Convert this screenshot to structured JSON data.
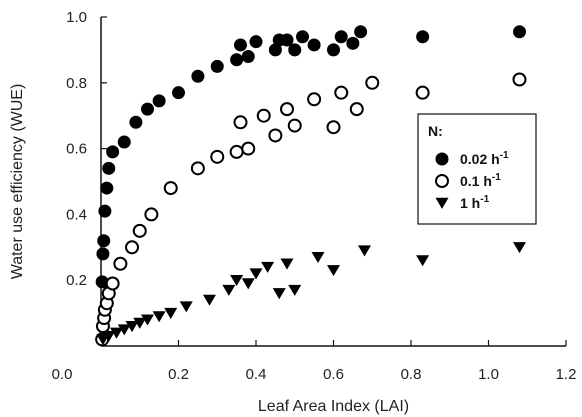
{
  "chart_data": {
    "type": "scatter",
    "xlabel": "Leaf Area Index (LAI)",
    "ylabel": "Water use efficiency (WUE)",
    "xlim": [
      0,
      1.2
    ],
    "ylim": [
      0,
      1.0
    ],
    "x_ticks": [
      "0.0",
      "0.2",
      "0.4",
      "0.6",
      "0.8",
      "1.0",
      "1.2"
    ],
    "y_ticks": [
      "0.0",
      "0.2",
      "0.4",
      "0.6",
      "0.8",
      "1.0"
    ],
    "grid": false,
    "legend": {
      "title": "N:",
      "placement": "right",
      "entries": [
        {
          "label": "0.02 h",
          "sup": "-1",
          "marker": "filled-circle"
        },
        {
          "label": "0.1 h",
          "sup": "-1",
          "marker": "open-circle"
        },
        {
          "label": "1 h",
          "sup": "-1",
          "marker": "filled-triangle-down"
        }
      ]
    },
    "series": [
      {
        "name": "0.02 h-1",
        "marker": "filled-circle",
        "color": "#000000",
        "x": [
          0.003,
          0.005,
          0.007,
          0.01,
          0.015,
          0.02,
          0.03,
          0.06,
          0.09,
          0.12,
          0.15,
          0.2,
          0.25,
          0.3,
          0.35,
          0.36,
          0.38,
          0.4,
          0.45,
          0.46,
          0.48,
          0.5,
          0.52,
          0.55,
          0.6,
          0.62,
          0.65,
          0.67,
          0.83,
          1.08
        ],
        "y": [
          0.195,
          0.28,
          0.32,
          0.41,
          0.48,
          0.54,
          0.59,
          0.62,
          0.68,
          0.72,
          0.745,
          0.77,
          0.82,
          0.85,
          0.87,
          0.915,
          0.88,
          0.925,
          0.9,
          0.93,
          0.93,
          0.9,
          0.94,
          0.915,
          0.9,
          0.94,
          0.92,
          0.955,
          0.94,
          0.955
        ]
      },
      {
        "name": "0.1 h-1",
        "marker": "open-circle",
        "color": "#000000",
        "x": [
          0.003,
          0.005,
          0.008,
          0.01,
          0.015,
          0.02,
          0.03,
          0.05,
          0.08,
          0.1,
          0.13,
          0.18,
          0.25,
          0.3,
          0.35,
          0.36,
          0.38,
          0.42,
          0.45,
          0.48,
          0.5,
          0.55,
          0.6,
          0.62,
          0.66,
          0.7,
          0.83,
          1.08
        ],
        "y": [
          0.02,
          0.06,
          0.085,
          0.11,
          0.13,
          0.16,
          0.19,
          0.25,
          0.3,
          0.35,
          0.4,
          0.48,
          0.54,
          0.575,
          0.59,
          0.68,
          0.6,
          0.7,
          0.64,
          0.72,
          0.67,
          0.75,
          0.665,
          0.77,
          0.72,
          0.8,
          0.77,
          0.81
        ]
      },
      {
        "name": "1 h-1",
        "marker": "filled-triangle-down",
        "color": "#000000",
        "x": [
          0.005,
          0.02,
          0.04,
          0.06,
          0.08,
          0.1,
          0.12,
          0.15,
          0.18,
          0.22,
          0.28,
          0.33,
          0.35,
          0.38,
          0.4,
          0.43,
          0.46,
          0.48,
          0.5,
          0.56,
          0.6,
          0.68,
          0.83,
          1.08
        ],
        "y": [
          0.02,
          0.03,
          0.04,
          0.05,
          0.06,
          0.07,
          0.08,
          0.09,
          0.1,
          0.12,
          0.14,
          0.17,
          0.2,
          0.19,
          0.22,
          0.24,
          0.16,
          0.25,
          0.17,
          0.27,
          0.23,
          0.29,
          0.26,
          0.3
        ]
      }
    ]
  }
}
